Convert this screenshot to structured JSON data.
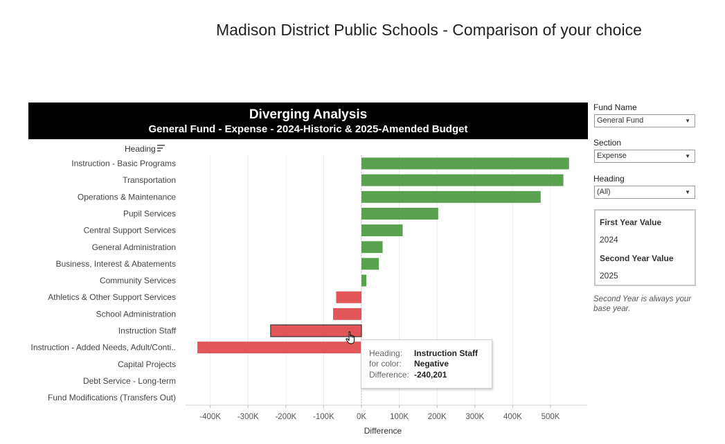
{
  "page_title": "Madison District Public Schools - Comparison of your choice",
  "chart_header": {
    "title": "Diverging Analysis",
    "subtitle": "General Fund - Expense - 2024-Historic & 2025-Amended Budget"
  },
  "heading_label": "Heading",
  "colors": {
    "positive": "#59a14f",
    "negative": "#e15759",
    "highlight_border": "#333333"
  },
  "chart_data": {
    "type": "bar",
    "orientation": "horizontal",
    "xlabel": "Difference",
    "ylabel": "Heading",
    "xlim": [
      -450000,
      560000
    ],
    "xticks": [
      -400000,
      -300000,
      -200000,
      -100000,
      0,
      100000,
      200000,
      300000,
      400000,
      500000
    ],
    "xtick_labels": [
      "-400K",
      "-300K",
      "-200K",
      "-100K",
      "0K",
      "100K",
      "200K",
      "300K",
      "400K",
      "500K"
    ],
    "grid": true,
    "categories": [
      "Instruction - Basic Programs",
      "Transportation",
      "Operations & Maintenance",
      "Pupil Services",
      "Central Support Services",
      "General Administration",
      "Business, Interest & Abatements",
      "Community Services",
      "Athletics & Other Support Services",
      "School Administration",
      "Instruction Staff",
      "Instruction - Added Needs, Adult/Conti..",
      "Capital Projects",
      "Debt Service - Long-term",
      "Fund Modifications (Transfers Out)"
    ],
    "values": [
      549000,
      534000,
      474000,
      203000,
      109000,
      56000,
      46000,
      13000,
      -67000,
      -75000,
      -240201,
      -434000,
      0,
      0,
      0
    ],
    "highlighted_index": 10
  },
  "filters": {
    "fund_name": {
      "label": "Fund Name",
      "value": "General Fund"
    },
    "section": {
      "label": "Section",
      "value": "Expense"
    },
    "heading": {
      "label": "Heading",
      "value": "(All)"
    }
  },
  "params": {
    "first_label": "First Year Value",
    "first_value": "2024",
    "second_label": "Second Year Value",
    "second_value": "2025"
  },
  "note": "Second Year is always your base year.",
  "tooltip": {
    "k1": "Heading:",
    "v1": "Instruction Staff",
    "k2": "for color:",
    "v2": "Negative",
    "k3": "Difference:",
    "v3": "-240,201"
  }
}
